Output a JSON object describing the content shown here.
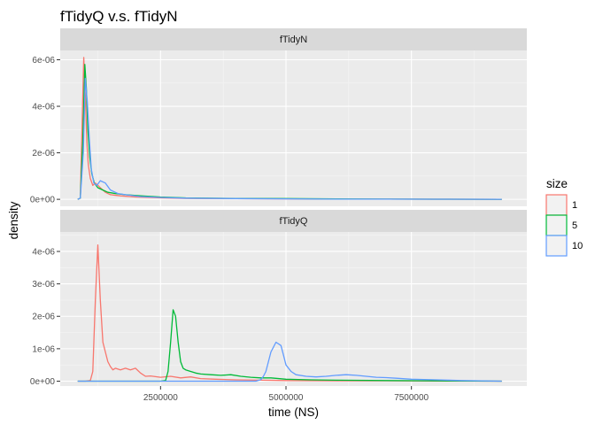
{
  "chart_data": {
    "type": "line",
    "title": "fTidyQ v.s. fTidyN",
    "xlabel": "time (NS)",
    "ylabel": "density",
    "x_ticks": [
      2500000,
      5000000,
      7500000
    ],
    "x_tick_labels": [
      "2500000",
      "5000000",
      "7500000"
    ],
    "xlim": [
      500000,
      9800000
    ],
    "grid": true,
    "legend": {
      "title": "size",
      "placement": "right",
      "entries": [
        {
          "label": "1",
          "color": "#F8766D"
        },
        {
          "label": "5",
          "color": "#00BA38"
        },
        {
          "label": "10",
          "color": "#619CFF"
        }
      ]
    },
    "panels": [
      {
        "strip": "fTidyN",
        "ylim": [
          -3e-07,
          6.4e-06
        ],
        "y_ticks": [
          0,
          2e-06,
          4e-06,
          6e-06
        ],
        "y_tick_labels": [
          "0e+00",
          "2e-06",
          "4e-06",
          "6e-06"
        ],
        "series": [
          {
            "name": "1",
            "color": "#F8766D",
            "x": [
              850000,
              900000,
              940000,
              970000,
              1000000,
              1030000,
              1060000,
              1100000,
              1150000,
              1200000,
              1300000,
              1400000,
              1500000,
              1700000,
              2000000,
              2500000,
              3000000,
              4000000,
              5000000,
              6000000,
              7000000,
              8000000,
              9300000
            ],
            "y": [
              0,
              5e-08,
              3.5e-06,
              6.1e-06,
              4.5e-06,
              2.5e-06,
              1.5e-06,
              9e-07,
              6e-07,
              7e-07,
              5e-07,
              3e-07,
              2e-07,
              1.5e-07,
              1e-07,
              6e-08,
              4e-08,
              3e-08,
              2e-08,
              1e-08,
              1e-08,
              5e-09,
              0
            ]
          },
          {
            "name": "5",
            "color": "#00BA38",
            "x": [
              850000,
              900000,
              950000,
              990000,
              1020000,
              1050000,
              1090000,
              1130000,
              1180000,
              1250000,
              1350000,
              1450000,
              1600000,
              1800000,
              2100000,
              2500000,
              3000000,
              4000000,
              5000000,
              6000000,
              7000000,
              8000000,
              9300000
            ],
            "y": [
              0,
              5e-08,
              2.5e-06,
              5.8e-06,
              4.8e-06,
              3e-06,
              1.8e-06,
              1.1e-06,
              7e-07,
              5e-07,
              4e-07,
              3e-07,
              2.5e-07,
              2e-07,
              1.5e-07,
              1e-07,
              6e-08,
              4e-08,
              3e-08,
              2e-08,
              1e-08,
              5e-09,
              0
            ]
          },
          {
            "name": "10",
            "color": "#619CFF",
            "x": [
              850000,
              900000,
              960000,
              1000000,
              1040000,
              1080000,
              1120000,
              1170000,
              1230000,
              1300000,
              1400000,
              1500000,
              1650000,
              1800000,
              2100000,
              2500000,
              3000000,
              4000000,
              5000000,
              6000000,
              7000000,
              8000000,
              9300000
            ],
            "y": [
              0,
              5e-08,
              2e-06,
              5.2e-06,
              4.2e-06,
              2.6e-06,
              1.3e-06,
              7e-07,
              6e-07,
              8e-07,
              7e-07,
              4e-07,
              2.5e-07,
              2e-07,
              1.2e-07,
              8e-08,
              5e-08,
              3e-08,
              2e-08,
              1e-08,
              1e-08,
              5e-09,
              0
            ]
          }
        ]
      },
      {
        "strip": "fTidyQ",
        "ylim": [
          -1.5e-07,
          4.6e-06
        ],
        "y_ticks": [
          0,
          1e-06,
          2e-06,
          3e-06,
          4e-06
        ],
        "y_tick_labels": [
          "0e+00",
          "1e-06",
          "2e-06",
          "3e-06",
          "4e-06"
        ],
        "series": [
          {
            "name": "1",
            "color": "#F8766D",
            "x": [
              850000,
              1000000,
              1100000,
              1150000,
              1200000,
              1250000,
              1300000,
              1350000,
              1400000,
              1450000,
              1500000,
              1550000,
              1600000,
              1700000,
              1800000,
              1900000,
              2000000,
              2100000,
              2200000,
              2300000,
              2500000,
              2700000,
              2900000,
              3100000,
              3300000,
              3600000,
              4000000,
              4500000,
              5000000,
              6000000,
              7000000,
              8000000,
              9300000
            ],
            "y": [
              0,
              0,
              2e-08,
              3e-07,
              2.5e-06,
              4.2e-06,
              2.5e-06,
              1.2e-06,
              9e-07,
              6e-07,
              4.5e-07,
              3.5e-07,
              4e-07,
              3.5e-07,
              4e-07,
              3.5e-07,
              4e-07,
              2.5e-07,
              1.5e-07,
              1.6e-07,
              1.2e-07,
              1.5e-07,
              1e-07,
              1.3e-07,
              8e-08,
              6e-08,
              4e-08,
              3e-08,
              2e-08,
              1e-08,
              1e-08,
              5e-09,
              0
            ]
          },
          {
            "name": "5",
            "color": "#00BA38",
            "x": [
              850000,
              2500000,
              2600000,
              2650000,
              2700000,
              2750000,
              2800000,
              2850000,
              2900000,
              2950000,
              3000000,
              3100000,
              3200000,
              3300000,
              3500000,
              3700000,
              3900000,
              4100000,
              4300000,
              4500000,
              4700000,
              5000000,
              5500000,
              6000000,
              7000000,
              8000000,
              9300000
            ],
            "y": [
              0,
              0,
              2e-08,
              3e-07,
              1.2e-06,
              2.2e-06,
              2e-06,
              1.2e-06,
              6e-07,
              4e-07,
              3.5e-07,
              3e-07,
              2.5e-07,
              2.2e-07,
              2e-07,
              1.8e-07,
              2e-07,
              1.5e-07,
              1.2e-07,
              1e-07,
              1e-07,
              6e-08,
              4e-08,
              3e-08,
              2e-08,
              1e-08,
              0
            ]
          },
          {
            "name": "10",
            "color": "#619CFF",
            "x": [
              850000,
              4400000,
              4500000,
              4550000,
              4600000,
              4700000,
              4800000,
              4900000,
              4950000,
              5000000,
              5100000,
              5200000,
              5400000,
              5600000,
              5800000,
              6000000,
              6200000,
              6400000,
              6600000,
              6800000,
              7000000,
              7200000,
              7500000,
              8000000,
              8500000,
              9300000
            ],
            "y": [
              0,
              0,
              5e-08,
              1.5e-07,
              3e-07,
              9e-07,
              1.2e-06,
              1.1e-06,
              8e-07,
              5e-07,
              3e-07,
              2e-07,
              1.5e-07,
              1.3e-07,
              1.5e-07,
              1.8e-07,
              2e-07,
              1.8e-07,
              1.5e-07,
              1.2e-07,
              1.1e-07,
              9e-08,
              6e-08,
              4e-08,
              2e-08,
              0
            ]
          }
        ]
      }
    ]
  }
}
